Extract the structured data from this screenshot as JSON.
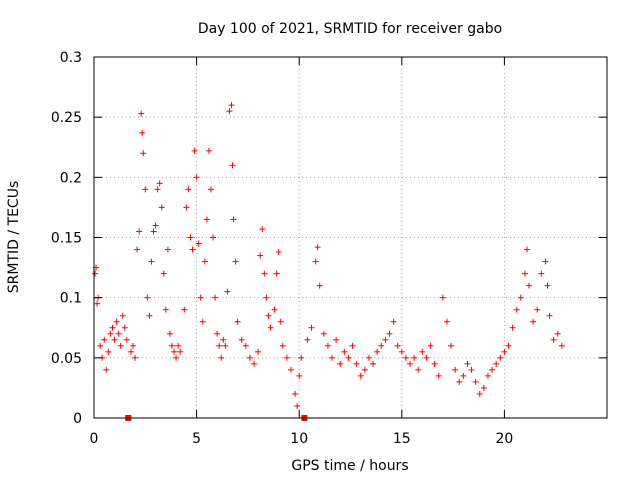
{
  "chart_data": {
    "type": "scatter",
    "title": "Day 100 of 2021, SRMTID for receiver gabo",
    "xlabel": "GPS time / hours",
    "ylabel": "SRMTID / TECUs",
    "xlim": [
      0,
      25
    ],
    "ylim": [
      0,
      0.3
    ],
    "xticks": [
      0,
      5,
      10,
      15,
      20
    ],
    "xtick_labels": [
      "0",
      "5",
      "10",
      "15",
      "20"
    ],
    "yticks": [
      0,
      0.05,
      0.1,
      0.15,
      0.2,
      0.25,
      0.3
    ],
    "ytick_labels": [
      "0",
      "0.05",
      "0.1",
      "0.15",
      "0.2",
      "0.25",
      "0.3"
    ],
    "grid": true,
    "marker": "+",
    "color": "#ff0000",
    "data_gaps_x": [
      1.67,
      10.25
    ],
    "series": [
      {
        "name": "SRMTID",
        "points": [
          [
            0.05,
            0.12
          ],
          [
            0.1,
            0.125
          ],
          [
            0.15,
            0.095
          ],
          [
            0.2,
            0.1
          ],
          [
            0.3,
            0.06
          ],
          [
            0.4,
            0.05
          ],
          [
            0.5,
            0.065
          ],
          [
            0.6,
            0.04
          ],
          [
            0.7,
            0.055
          ],
          [
            0.8,
            0.07
          ],
          [
            0.9,
            0.075
          ],
          [
            1.0,
            0.065
          ],
          [
            1.1,
            0.08
          ],
          [
            1.2,
            0.07
          ],
          [
            1.3,
            0.06
          ],
          [
            1.4,
            0.085
          ],
          [
            1.5,
            0.075
          ],
          [
            1.6,
            0.065
          ],
          [
            1.8,
            0.055
          ],
          [
            1.9,
            0.06
          ],
          [
            2.0,
            0.05
          ],
          [
            2.1,
            0.14
          ],
          [
            2.2,
            0.155
          ],
          [
            2.3,
            0.253
          ],
          [
            2.35,
            0.237
          ],
          [
            2.4,
            0.22
          ],
          [
            2.5,
            0.19
          ],
          [
            2.6,
            0.1
          ],
          [
            2.7,
            0.085
          ],
          [
            2.8,
            0.13
          ],
          [
            2.9,
            0.155
          ],
          [
            3.0,
            0.16
          ],
          [
            3.1,
            0.19
          ],
          [
            3.2,
            0.195
          ],
          [
            3.3,
            0.175
          ],
          [
            3.4,
            0.12
          ],
          [
            3.5,
            0.09
          ],
          [
            3.6,
            0.14
          ],
          [
            3.7,
            0.07
          ],
          [
            3.8,
            0.06
          ],
          [
            3.9,
            0.055
          ],
          [
            4.0,
            0.05
          ],
          [
            4.1,
            0.06
          ],
          [
            4.2,
            0.055
          ],
          [
            4.4,
            0.09
          ],
          [
            4.5,
            0.175
          ],
          [
            4.6,
            0.19
          ],
          [
            4.7,
            0.15
          ],
          [
            4.8,
            0.14
          ],
          [
            4.9,
            0.222
          ],
          [
            5.0,
            0.2
          ],
          [
            5.1,
            0.145
          ],
          [
            5.2,
            0.1
          ],
          [
            5.3,
            0.08
          ],
          [
            5.4,
            0.13
          ],
          [
            5.5,
            0.165
          ],
          [
            5.6,
            0.222
          ],
          [
            5.7,
            0.19
          ],
          [
            5.8,
            0.15
          ],
          [
            5.9,
            0.1
          ],
          [
            6.0,
            0.07
          ],
          [
            6.1,
            0.06
          ],
          [
            6.2,
            0.05
          ],
          [
            6.3,
            0.065
          ],
          [
            6.4,
            0.06
          ],
          [
            6.5,
            0.105
          ],
          [
            6.6,
            0.255
          ],
          [
            6.7,
            0.26
          ],
          [
            6.75,
            0.21
          ],
          [
            6.8,
            0.165
          ],
          [
            6.9,
            0.13
          ],
          [
            7.0,
            0.08
          ],
          [
            7.2,
            0.065
          ],
          [
            7.4,
            0.06
          ],
          [
            7.6,
            0.05
          ],
          [
            7.8,
            0.045
          ],
          [
            8.0,
            0.055
          ],
          [
            8.1,
            0.135
          ],
          [
            8.2,
            0.157
          ],
          [
            8.3,
            0.12
          ],
          [
            8.4,
            0.1
          ],
          [
            8.5,
            0.085
          ],
          [
            8.6,
            0.075
          ],
          [
            8.8,
            0.09
          ],
          [
            8.9,
            0.12
          ],
          [
            9.0,
            0.138
          ],
          [
            9.1,
            0.08
          ],
          [
            9.2,
            0.06
          ],
          [
            9.4,
            0.05
          ],
          [
            9.6,
            0.04
          ],
          [
            9.8,
            0.02
          ],
          [
            9.9,
            0.01
          ],
          [
            10.0,
            0.035
          ],
          [
            10.1,
            0.05
          ],
          [
            10.4,
            0.065
          ],
          [
            10.6,
            0.075
          ],
          [
            10.8,
            0.13
          ],
          [
            10.9,
            0.142
          ],
          [
            11.0,
            0.11
          ],
          [
            11.2,
            0.07
          ],
          [
            11.4,
            0.06
          ],
          [
            11.6,
            0.05
          ],
          [
            11.8,
            0.065
          ],
          [
            12.0,
            0.045
          ],
          [
            12.2,
            0.055
          ],
          [
            12.4,
            0.05
          ],
          [
            12.6,
            0.06
          ],
          [
            12.8,
            0.045
          ],
          [
            13.0,
            0.035
          ],
          [
            13.2,
            0.04
          ],
          [
            13.4,
            0.05
          ],
          [
            13.6,
            0.045
          ],
          [
            13.8,
            0.055
          ],
          [
            14.0,
            0.06
          ],
          [
            14.2,
            0.065
          ],
          [
            14.4,
            0.07
          ],
          [
            14.6,
            0.08
          ],
          [
            14.8,
            0.06
          ],
          [
            15.0,
            0.055
          ],
          [
            15.2,
            0.05
          ],
          [
            15.4,
            0.045
          ],
          [
            15.6,
            0.05
          ],
          [
            15.8,
            0.04
          ],
          [
            16.0,
            0.055
          ],
          [
            16.2,
            0.05
          ],
          [
            16.4,
            0.06
          ],
          [
            16.6,
            0.045
          ],
          [
            16.8,
            0.035
          ],
          [
            17.0,
            0.1
          ],
          [
            17.2,
            0.08
          ],
          [
            17.4,
            0.06
          ],
          [
            17.6,
            0.04
          ],
          [
            17.8,
            0.03
          ],
          [
            18.0,
            0.035
          ],
          [
            18.2,
            0.045
          ],
          [
            18.4,
            0.04
          ],
          [
            18.6,
            0.03
          ],
          [
            18.8,
            0.02
          ],
          [
            19.0,
            0.025
          ],
          [
            19.2,
            0.035
          ],
          [
            19.4,
            0.04
          ],
          [
            19.6,
            0.045
          ],
          [
            19.8,
            0.05
          ],
          [
            20.0,
            0.055
          ],
          [
            20.2,
            0.06
          ],
          [
            20.4,
            0.075
          ],
          [
            20.6,
            0.09
          ],
          [
            20.8,
            0.1
          ],
          [
            21.0,
            0.12
          ],
          [
            21.1,
            0.14
          ],
          [
            21.2,
            0.11
          ],
          [
            21.4,
            0.08
          ],
          [
            21.6,
            0.09
          ],
          [
            21.8,
            0.12
          ],
          [
            22.0,
            0.13
          ],
          [
            22.1,
            0.11
          ],
          [
            22.2,
            0.085
          ],
          [
            22.4,
            0.065
          ],
          [
            22.6,
            0.07
          ],
          [
            22.8,
            0.06
          ]
        ]
      }
    ]
  }
}
